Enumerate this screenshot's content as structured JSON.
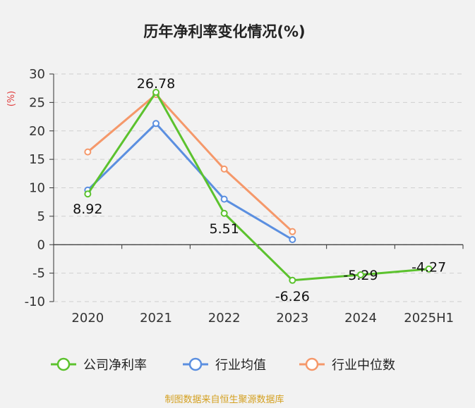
{
  "chart_data": {
    "type": "line",
    "title": "历年净利率变化情况(%)",
    "ylabel": "(%)",
    "xlabel": "",
    "categories": [
      "2020",
      "2021",
      "2022",
      "2023",
      "2024",
      "2025H1"
    ],
    "ylim": [
      -10,
      30
    ],
    "yticks": [
      30,
      25,
      20,
      15,
      10,
      5,
      0,
      -5,
      -10
    ],
    "grid": true,
    "legend_position": "bottom",
    "series": [
      {
        "name": "公司净利率",
        "color": "#5cc22e",
        "values": [
          8.92,
          26.78,
          5.51,
          -6.26,
          -5.29,
          -4.27
        ],
        "labels": [
          "8.92",
          "26.78",
          "5.51",
          "-6.26",
          "-5.29",
          "-4.27"
        ]
      },
      {
        "name": "行业均值",
        "color": "#5b8fe0",
        "values": [
          9.6,
          21.3,
          8.0,
          0.9,
          null,
          null
        ]
      },
      {
        "name": "行业中位数",
        "color": "#f5986a",
        "values": [
          16.3,
          26.4,
          13.3,
          2.3,
          null,
          null
        ]
      }
    ],
    "source": "制图数据来自恒生聚源数据库"
  }
}
